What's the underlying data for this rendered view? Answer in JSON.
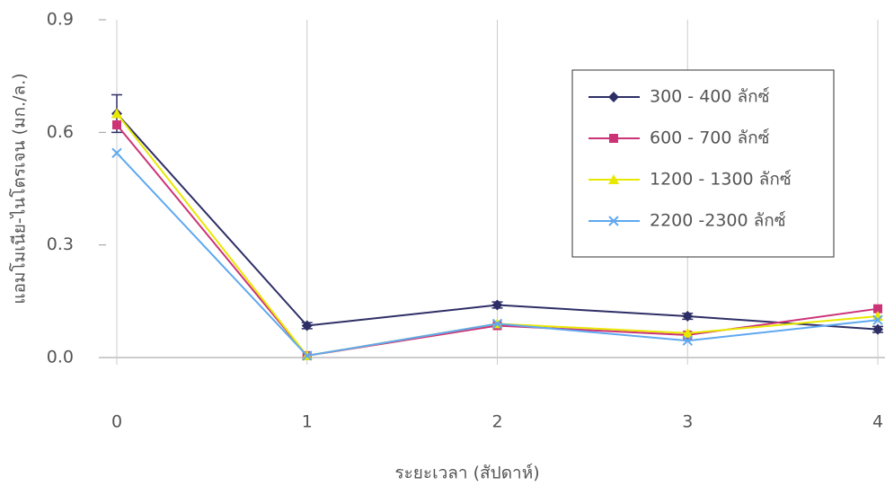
{
  "chart_data": {
    "type": "line",
    "y_label": "แอมโมเนีย-ไนโตรเจน (มก./ล.)",
    "x_label": "ระยะเวลา (สัปดาห์)",
    "x": [
      0,
      1,
      2,
      3,
      4
    ],
    "xlim": [
      0,
      4
    ],
    "xticks": [
      0,
      1,
      2,
      3,
      4
    ],
    "ylim": [
      0,
      0.9
    ],
    "yticks": [
      {
        "value": 0,
        "label": "0.0"
      },
      0.3,
      0.6,
      0.9
    ],
    "legend": "upper-right",
    "series": [
      {
        "name": "300 - 400  ลักซ์",
        "color": "#2e2e66",
        "marker": "diamond",
        "values": [
          0.65,
          0.085,
          0.14,
          0.11,
          0.075
        ],
        "errors": [
          0.05,
          0.008,
          0.008,
          0.008,
          0.008
        ]
      },
      {
        "name": "600 - 700  ลักซ์",
        "color": "#cc3377",
        "marker": "square",
        "values": [
          0.62,
          0.005,
          0.085,
          0.06,
          0.13
        ]
      },
      {
        "name": "1200 - 1300  ลักซ์",
        "color": "#e8e800",
        "marker": "triangle",
        "values": [
          0.65,
          0.005,
          0.09,
          0.065,
          0.11
        ]
      },
      {
        "name": "2200 -2300  ลักซ์",
        "color": "#5fa8f0",
        "marker": "cross",
        "values": [
          0.545,
          0.005,
          0.09,
          0.045,
          0.1
        ]
      }
    ]
  }
}
